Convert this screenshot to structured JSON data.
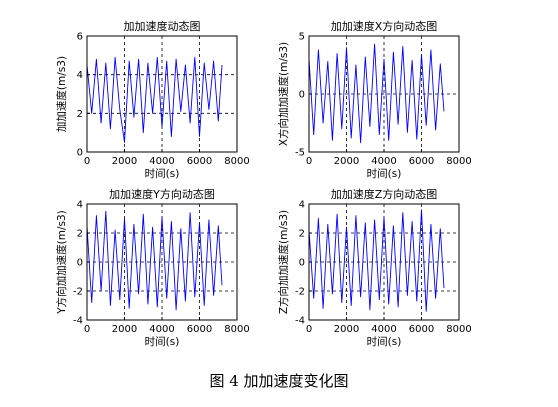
{
  "figure": {
    "caption": "图 4  加加速度变化图"
  },
  "chart_data": [
    {
      "type": "line",
      "title": "加加速度动态图",
      "xlabel": "时间(s)",
      "ylabel": "加加速度(m/s3)",
      "xlim": [
        0,
        8000
      ],
      "ylim": [
        0,
        6
      ],
      "xticks": [
        0,
        2000,
        4000,
        6000,
        8000
      ],
      "yticks": [
        0,
        2,
        4,
        6
      ],
      "grid": "dashed",
      "color": "#0000ff",
      "series": [
        {
          "x": [
            0,
            250,
            500,
            750,
            1000,
            1250,
            1500,
            1750,
            2000,
            2250,
            2500,
            2750,
            3000,
            3250,
            3500,
            3750,
            4000,
            4250,
            4500,
            4750,
            5000,
            5250,
            5500,
            5750,
            6000,
            6250,
            6500,
            6750,
            7000,
            7200
          ],
          "y": [
            4.5,
            2.0,
            4.8,
            1.5,
            4.6,
            1.2,
            4.9,
            2.2,
            0.5,
            4.7,
            1.8,
            4.8,
            1.0,
            4.6,
            2.0,
            4.9,
            1.3,
            4.7,
            0.8,
            4.8,
            2.1,
            4.5,
            1.5,
            4.9,
            0.8,
            4.6,
            2.2,
            4.7,
            1.6,
            4.5
          ]
        }
      ]
    },
    {
      "type": "line",
      "title": "加加速度X方向动态图",
      "xlabel": "时间(s)",
      "ylabel": "X方向加加速度(m/s3)",
      "xlim": [
        0,
        8000
      ],
      "ylim": [
        -5,
        5
      ],
      "xticks": [
        0,
        2000,
        4000,
        6000,
        8000
      ],
      "yticks": [
        -5,
        0,
        5
      ],
      "grid": "dashed",
      "color": "#0000ff",
      "series": [
        {
          "x": [
            0,
            250,
            500,
            750,
            1000,
            1250,
            1500,
            1750,
            2000,
            2250,
            2500,
            2750,
            3000,
            3250,
            3500,
            3750,
            4000,
            4250,
            4500,
            4750,
            5000,
            5250,
            5500,
            5750,
            6000,
            6250,
            6500,
            6750,
            7000,
            7200
          ],
          "y": [
            3.0,
            -3.5,
            3.8,
            -2.5,
            2.8,
            -4.0,
            3.5,
            -3.0,
            4.0,
            -3.8,
            2.5,
            -4.2,
            3.2,
            -2.8,
            4.3,
            -3.5,
            3.0,
            -4.0,
            3.6,
            -2.6,
            4.1,
            -3.3,
            2.9,
            -3.9,
            3.4,
            -2.7,
            3.8,
            -3.1,
            2.6,
            -1.5
          ]
        }
      ]
    },
    {
      "type": "line",
      "title": "加加速度Y方向动态图",
      "xlabel": "时间(s)",
      "ylabel": "Y方向加加速度(m/s3)",
      "xlim": [
        0,
        8000
      ],
      "ylim": [
        -4,
        4
      ],
      "xticks": [
        0,
        2000,
        4000,
        6000,
        8000
      ],
      "yticks": [
        -4,
        -2,
        0,
        2,
        4
      ],
      "grid": "dashed",
      "color": "#0000ff",
      "series": [
        {
          "x": [
            0,
            250,
            500,
            750,
            1000,
            1250,
            1500,
            1750,
            2000,
            2250,
            2500,
            2750,
            3000,
            3250,
            3500,
            3750,
            4000,
            4250,
            4500,
            4750,
            5000,
            5250,
            5500,
            5750,
            6000,
            6250,
            6500,
            6750,
            7000,
            7200
          ],
          "y": [
            2.5,
            -2.8,
            3.2,
            -2.0,
            3.5,
            -3.0,
            2.2,
            -2.6,
            3.0,
            -3.2,
            2.6,
            -2.2,
            3.3,
            -2.9,
            2.4,
            -3.1,
            3.1,
            -2.5,
            2.8,
            -3.3,
            2.3,
            -2.7,
            3.4,
            -2.4,
            2.7,
            -3.0,
            2.9,
            -2.3,
            2.5,
            -1.6
          ]
        }
      ]
    },
    {
      "type": "line",
      "title": "加加速度Z方向动态图",
      "xlabel": "时间(s)",
      "ylabel": "Z方向加加速度(m/s3)",
      "xlim": [
        0,
        8000
      ],
      "ylim": [
        -4,
        4
      ],
      "xticks": [
        0,
        2000,
        4000,
        6000,
        8000
      ],
      "yticks": [
        -4,
        -2,
        0,
        2,
        4
      ],
      "grid": "dashed",
      "color": "#0000ff",
      "series": [
        {
          "x": [
            0,
            250,
            500,
            750,
            1000,
            1250,
            1500,
            1750,
            2000,
            2250,
            2500,
            2750,
            3000,
            3250,
            3500,
            3750,
            4000,
            4250,
            4500,
            4750,
            5000,
            5250,
            5500,
            5750,
            6000,
            6250,
            6500,
            6750,
            7000,
            7200
          ],
          "y": [
            2.2,
            -2.5,
            3.0,
            -3.2,
            2.6,
            -2.2,
            3.3,
            -2.8,
            2.4,
            -3.0,
            3.2,
            -2.4,
            2.7,
            -3.3,
            2.9,
            -2.6,
            3.1,
            -2.9,
            2.5,
            -3.1,
            3.4,
            -2.3,
            2.8,
            -2.7,
            3.6,
            -3.4,
            2.6,
            -2.5,
            2.3,
            -1.8
          ]
        }
      ]
    }
  ]
}
